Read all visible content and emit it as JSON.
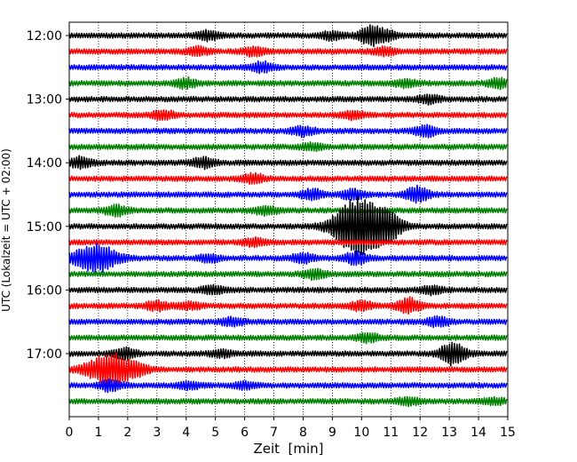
{
  "chart_data": {
    "type": "line",
    "title": "",
    "xlabel": "Zeit  [min]",
    "ylabel": "UTC (Lokalzeit = UTC + 02:00)",
    "xlim": [
      0,
      15
    ],
    "x_ticks": [
      0,
      1,
      2,
      3,
      4,
      5,
      6,
      7,
      8,
      9,
      10,
      11,
      12,
      13,
      14,
      15
    ],
    "y_tick_labels": [
      "12:00",
      "13:00",
      "14:00",
      "15:00",
      "16:00",
      "17:00"
    ],
    "grid": "vertical dotted",
    "row_interval_minutes": 15,
    "row_colors": [
      "#000000",
      "#ff0000",
      "#0000ff",
      "#008000"
    ],
    "rows": [
      {
        "time": "12:00",
        "color": "#000000",
        "events": [
          {
            "minute": 4.7,
            "amp": 0.5
          },
          {
            "minute": 9.0,
            "amp": 0.45
          },
          {
            "minute": 10.3,
            "amp": 1.1
          },
          {
            "minute": 10.8,
            "amp": 0.5
          }
        ]
      },
      {
        "time": "12:15",
        "color": "#ff0000",
        "events": [
          {
            "minute": 4.4,
            "amp": 0.45
          },
          {
            "minute": 6.3,
            "amp": 0.45
          },
          {
            "minute": 10.8,
            "amp": 0.4
          }
        ]
      },
      {
        "time": "12:30",
        "color": "#0000ff",
        "events": [
          {
            "minute": 6.6,
            "amp": 0.55
          }
        ]
      },
      {
        "time": "12:45",
        "color": "#008000",
        "events": [
          {
            "minute": 4.0,
            "amp": 0.5
          },
          {
            "minute": 11.5,
            "amp": 0.4
          },
          {
            "minute": 14.7,
            "amp": 0.5
          }
        ]
      },
      {
        "time": "13:00",
        "color": "#000000",
        "events": [
          {
            "minute": 12.3,
            "amp": 0.45
          }
        ]
      },
      {
        "time": "13:15",
        "color": "#ff0000",
        "events": [
          {
            "minute": 3.2,
            "amp": 0.5
          },
          {
            "minute": 9.7,
            "amp": 0.4
          }
        ]
      },
      {
        "time": "13:30",
        "color": "#0000ff",
        "events": [
          {
            "minute": 8.0,
            "amp": 0.5
          },
          {
            "minute": 12.2,
            "amp": 0.6
          }
        ]
      },
      {
        "time": "13:45",
        "color": "#008000",
        "events": [
          {
            "minute": 8.3,
            "amp": 0.35
          }
        ]
      },
      {
        "time": "14:00",
        "color": "#000000",
        "events": [
          {
            "minute": 0.4,
            "amp": 0.6
          },
          {
            "minute": 4.6,
            "amp": 0.6
          }
        ]
      },
      {
        "time": "14:15",
        "color": "#ff0000",
        "events": [
          {
            "minute": 6.3,
            "amp": 0.55
          }
        ]
      },
      {
        "time": "14:30",
        "color": "#0000ff",
        "events": [
          {
            "minute": 8.3,
            "amp": 0.6
          },
          {
            "minute": 9.7,
            "amp": 0.6
          },
          {
            "minute": 11.9,
            "amp": 0.9
          }
        ]
      },
      {
        "time": "14:45",
        "color": "#008000",
        "events": [
          {
            "minute": 1.6,
            "amp": 0.6
          },
          {
            "minute": 6.7,
            "amp": 0.45
          }
        ]
      },
      {
        "time": "15:00",
        "color": "#000000",
        "events": [
          {
            "minute": 9.8,
            "amp": 2.8
          },
          {
            "minute": 10.4,
            "amp": 1.5
          },
          {
            "minute": 11.0,
            "amp": 1.0
          }
        ]
      },
      {
        "time": "15:15",
        "color": "#ff0000",
        "events": [
          {
            "minute": 6.3,
            "amp": 0.4
          }
        ]
      },
      {
        "time": "15:30",
        "color": "#0000ff",
        "events": [
          {
            "minute": 0.9,
            "amp": 1.6
          },
          {
            "minute": 4.8,
            "amp": 0.4
          },
          {
            "minute": 8.0,
            "amp": 0.5
          },
          {
            "minute": 9.8,
            "amp": 0.7
          }
        ]
      },
      {
        "time": "15:45",
        "color": "#008000",
        "events": [
          {
            "minute": 8.4,
            "amp": 0.55
          }
        ]
      },
      {
        "time": "16:00",
        "color": "#000000",
        "events": [
          {
            "minute": 4.9,
            "amp": 0.45
          },
          {
            "minute": 12.4,
            "amp": 0.4
          }
        ]
      },
      {
        "time": "16:15",
        "color": "#ff0000",
        "events": [
          {
            "minute": 3.0,
            "amp": 0.5
          },
          {
            "minute": 4.1,
            "amp": 0.4
          },
          {
            "minute": 10.0,
            "amp": 0.5
          },
          {
            "minute": 11.6,
            "amp": 0.9
          }
        ]
      },
      {
        "time": "16:30",
        "color": "#0000ff",
        "events": [
          {
            "minute": 5.6,
            "amp": 0.45
          },
          {
            "minute": 12.6,
            "amp": 0.5
          }
        ]
      },
      {
        "time": "16:45",
        "color": "#008000",
        "events": [
          {
            "minute": 10.2,
            "amp": 0.45
          }
        ]
      },
      {
        "time": "17:00",
        "color": "#000000",
        "events": [
          {
            "minute": 1.9,
            "amp": 0.6
          },
          {
            "minute": 5.2,
            "amp": 0.35
          },
          {
            "minute": 13.0,
            "amp": 0.9
          },
          {
            "minute": 13.3,
            "amp": 0.6
          }
        ]
      },
      {
        "time": "17:15",
        "color": "#ff0000",
        "events": [
          {
            "minute": 1.4,
            "amp": 1.9
          },
          {
            "minute": 2.4,
            "amp": 0.4
          }
        ]
      },
      {
        "time": "17:30",
        "color": "#0000ff",
        "events": [
          {
            "minute": 1.4,
            "amp": 0.6
          },
          {
            "minute": 4.1,
            "amp": 0.4
          },
          {
            "minute": 6.0,
            "amp": 0.35
          }
        ]
      },
      {
        "time": "17:45",
        "color": "#008000",
        "events": [
          {
            "minute": 11.6,
            "amp": 0.4
          },
          {
            "minute": 14.5,
            "amp": 0.35
          }
        ]
      }
    ]
  }
}
